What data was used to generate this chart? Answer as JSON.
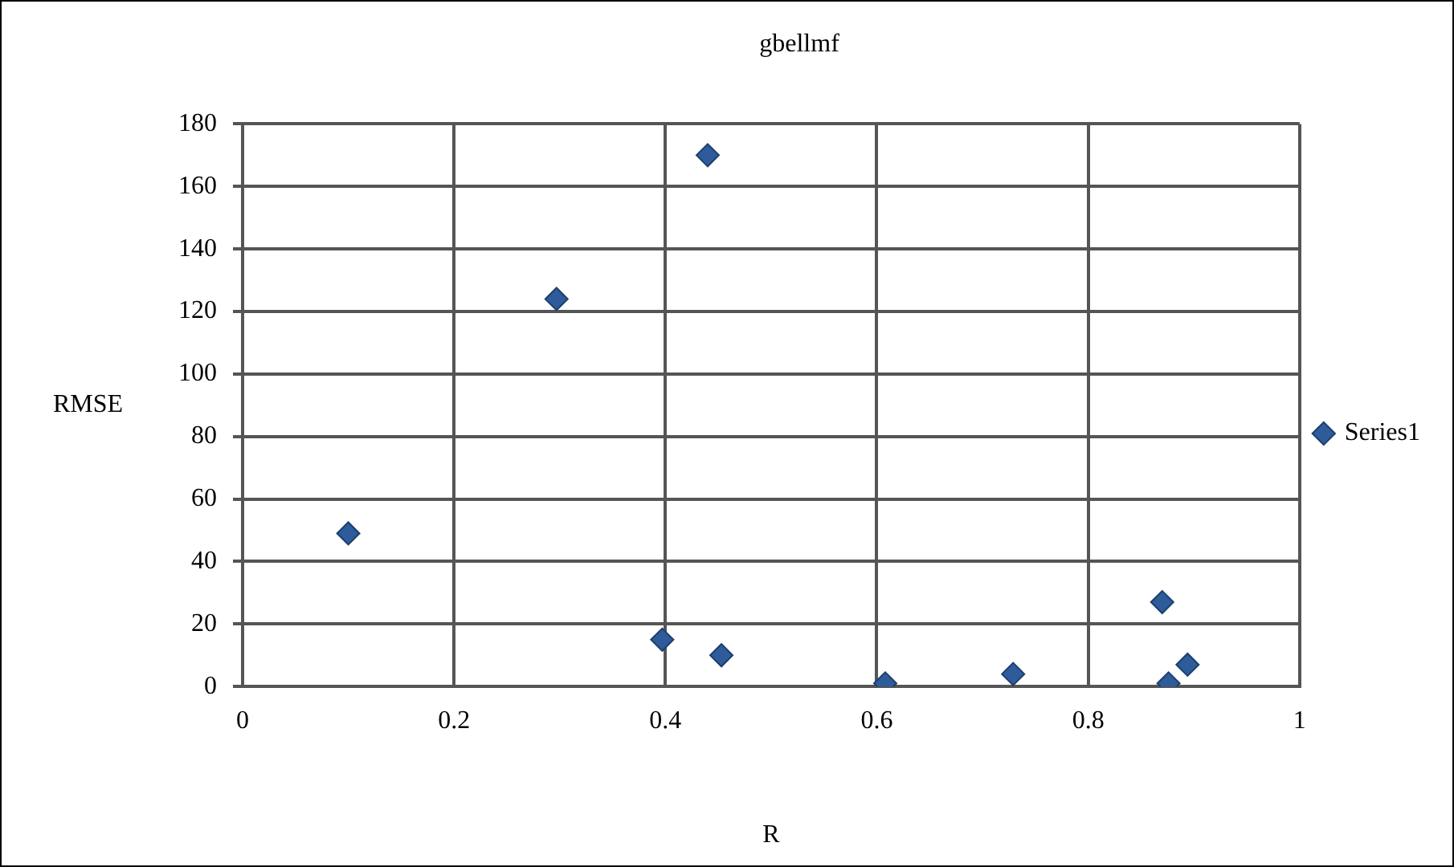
{
  "chart_data": {
    "type": "scatter",
    "title": "gbellmf",
    "xlabel": "R",
    "ylabel": "RMSE",
    "series": [
      {
        "name": "Series1",
        "color": "#2e5c9a",
        "x": [
          0.1,
          0.297,
          0.44,
          0.397,
          0.453,
          0.608,
          0.729,
          0.87,
          0.876,
          0.894
        ],
        "values": [
          49,
          124,
          170,
          15,
          10,
          1,
          4,
          27,
          1,
          7
        ]
      }
    ],
    "xlim": [
      0,
      1
    ],
    "xticks": [
      0,
      0.2,
      0.4,
      0.6,
      0.8,
      1
    ],
    "ylim": [
      0,
      180
    ],
    "yticks": [
      0,
      20,
      40,
      60,
      80,
      100,
      120,
      140,
      160,
      180
    ],
    "grid": true,
    "legend": "right",
    "marker": "diamond"
  }
}
